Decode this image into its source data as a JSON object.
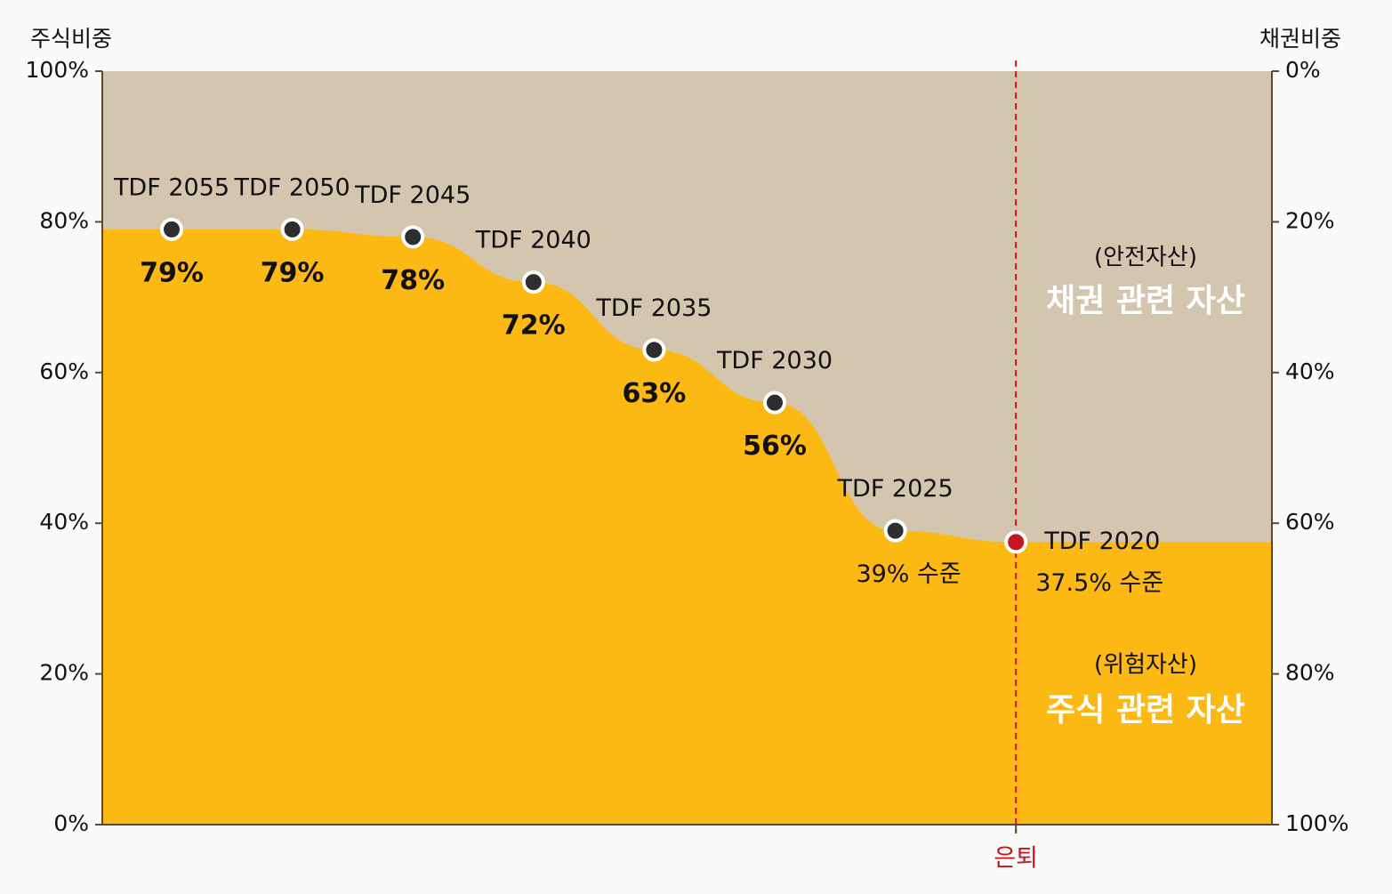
{
  "chart_data": {
    "type": "area",
    "y_label": "주식비중",
    "y2_label": "채권비중",
    "categories": [
      "TDF 2055",
      "TDF 2050",
      "TDF 2045",
      "TDF 2040",
      "TDF 2035",
      "TDF 2030",
      "TDF 2025",
      "TDF 2020"
    ],
    "values": [
      79,
      79,
      78,
      72,
      63,
      56,
      39,
      37.5
    ],
    "value_labels": [
      "79%",
      "79%",
      "78%",
      "72%",
      "63%",
      "56%",
      "39% 수준",
      "37.5% 수준"
    ],
    "color": "#FDB913",
    "background_color": "#D4C6AE",
    "marker_color": "#2e2e2e",
    "retirement_label": "은퇴",
    "retirement_color": "#C4161C",
    "annotations": [
      "(안전자산)",
      "채권 관련 자산",
      "(위험자산)",
      "주식 관련 자산"
    ],
    "ylim": [
      0,
      100
    ],
    "yticks": [
      {
        "value": 0,
        "label": "0%"
      },
      {
        "value": 20,
        "label": "20%"
      },
      {
        "value": 40,
        "label": "40%"
      },
      {
        "value": 60,
        "label": "60%"
      },
      {
        "value": 80,
        "label": "80%"
      },
      {
        "value": 100,
        "label": "100%"
      }
    ],
    "y2lim": [
      100,
      0
    ],
    "y2ticks": [
      {
        "value": 0,
        "label": "0%"
      },
      {
        "value": 20,
        "label": "20%"
      },
      {
        "value": 40,
        "label": "40%"
      },
      {
        "value": 60,
        "label": "60%"
      },
      {
        "value": 80,
        "label": "80%"
      },
      {
        "value": 100,
        "label": "100%"
      }
    ]
  }
}
